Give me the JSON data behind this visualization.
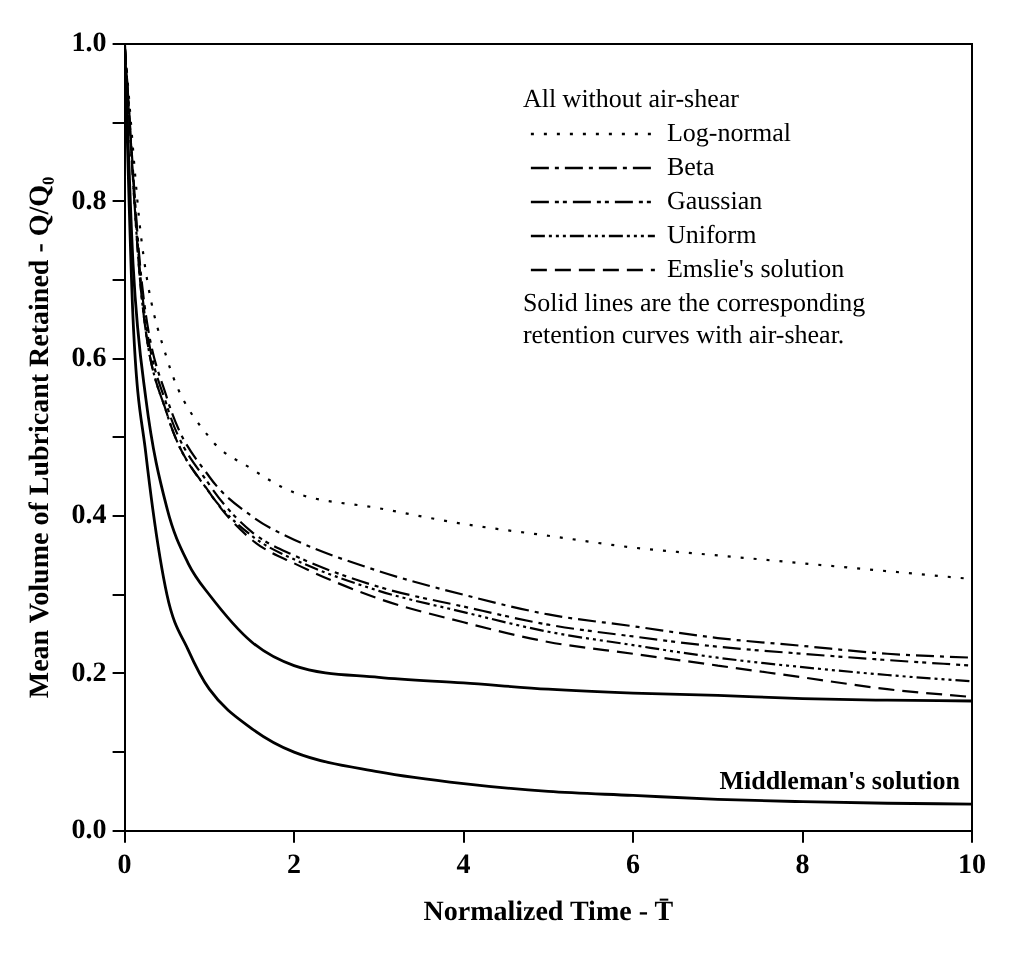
{
  "chart_data": {
    "type": "line",
    "xlabel": "Normalized Time - T̄",
    "ylabel": "Mean Volume of Lubricant Retained - Q/Q₀",
    "legend_title": "All without air-shear",
    "legend": "top right",
    "grid": false,
    "xlim": [
      0,
      10
    ],
    "xticks": [
      0,
      2,
      4,
      6,
      8,
      10
    ],
    "ylim": [
      0,
      1
    ],
    "yticks": [
      {
        "value": 0,
        "label": "0.0"
      },
      {
        "value": 0.1,
        "label": null
      },
      {
        "value": 0.2,
        "label": "0.2"
      },
      {
        "value": 0.3,
        "label": null
      },
      {
        "value": 0.4,
        "label": "0.4"
      },
      {
        "value": 0.5,
        "label": null
      },
      {
        "value": 0.6,
        "label": "0.6"
      },
      {
        "value": 0.7,
        "label": null
      },
      {
        "value": 0.8,
        "label": "0.8"
      },
      {
        "value": 0.9,
        "label": null
      },
      {
        "value": 1,
        "label": "1.0"
      }
    ],
    "annotations": [
      "Solid lines are the corresponding retention curves with air-shear."
    ],
    "series": [
      {
        "name": "Log-normal",
        "color": "#000000",
        "line_style": "dotted",
        "x": [
          0,
          0.2,
          0.5,
          1,
          1.5,
          2,
          3,
          4,
          5,
          6,
          7,
          8,
          9,
          10
        ],
        "values": [
          1,
          0.75,
          0.6,
          0.5,
          0.46,
          0.43,
          0.41,
          0.39,
          0.375,
          0.36,
          0.35,
          0.34,
          0.33,
          0.32
        ]
      },
      {
        "name": "Beta",
        "color": "#000000",
        "line_style": "dashed",
        "x": [
          0,
          0.2,
          0.5,
          1,
          1.5,
          2,
          3,
          4,
          5,
          6,
          7,
          8,
          9,
          10
        ],
        "values": [
          1,
          0.7,
          0.55,
          0.45,
          0.4,
          0.37,
          0.33,
          0.3,
          0.275,
          0.26,
          0.245,
          0.235,
          0.225,
          0.22
        ]
      },
      {
        "name": "Gaussian",
        "color": "#000000",
        "line_style": "dashed",
        "x": [
          0,
          0.2,
          0.5,
          1,
          1.5,
          2,
          3,
          4,
          5,
          6,
          7,
          8,
          9,
          10
        ],
        "values": [
          1,
          0.69,
          0.54,
          0.44,
          0.38,
          0.35,
          0.31,
          0.285,
          0.262,
          0.247,
          0.234,
          0.225,
          0.217,
          0.21
        ]
      },
      {
        "name": "Uniform",
        "color": "#000000",
        "line_style": "dashed",
        "x": [
          0,
          0.2,
          0.5,
          1,
          1.5,
          2,
          3,
          4,
          5,
          6,
          7,
          8,
          9,
          10
        ],
        "values": [
          1,
          0.68,
          0.53,
          0.43,
          0.375,
          0.345,
          0.305,
          0.278,
          0.253,
          0.236,
          0.22,
          0.208,
          0.198,
          0.19
        ]
      },
      {
        "name": "Emslie's solution",
        "color": "#000000",
        "line_style": "dashed",
        "x": [
          0,
          0.2,
          0.5,
          1,
          1.5,
          2,
          3,
          4,
          5,
          6,
          7,
          8,
          9,
          10
        ],
        "values": [
          1,
          0.68,
          0.53,
          0.43,
          0.37,
          0.34,
          0.295,
          0.265,
          0.24,
          0.225,
          0.21,
          0.195,
          0.18,
          0.17
        ]
      },
      {
        "color": "#000000",
        "line_style": "solid",
        "x": [
          0,
          0.1,
          0.25,
          0.5,
          0.75,
          1,
          1.5,
          2,
          3,
          4,
          5,
          6,
          7,
          8,
          9,
          10
        ],
        "values": [
          1,
          0.72,
          0.55,
          0.41,
          0.34,
          0.3,
          0.24,
          0.21,
          0.195,
          0.188,
          0.18,
          0.175,
          0.172,
          0.168,
          0.166,
          0.165
        ]
      },
      {
        "name": "Middleman's solution",
        "color": "#000000",
        "line_style": "solid",
        "x": [
          0,
          0.1,
          0.25,
          0.5,
          0.75,
          1,
          1.5,
          2,
          3,
          4,
          5,
          6,
          7,
          8,
          9,
          10
        ],
        "values": [
          1,
          0.65,
          0.48,
          0.3,
          0.23,
          0.18,
          0.13,
          0.1,
          0.075,
          0.06,
          0.05,
          0.045,
          0.04,
          0.037,
          0.035,
          0.034
        ]
      }
    ]
  }
}
